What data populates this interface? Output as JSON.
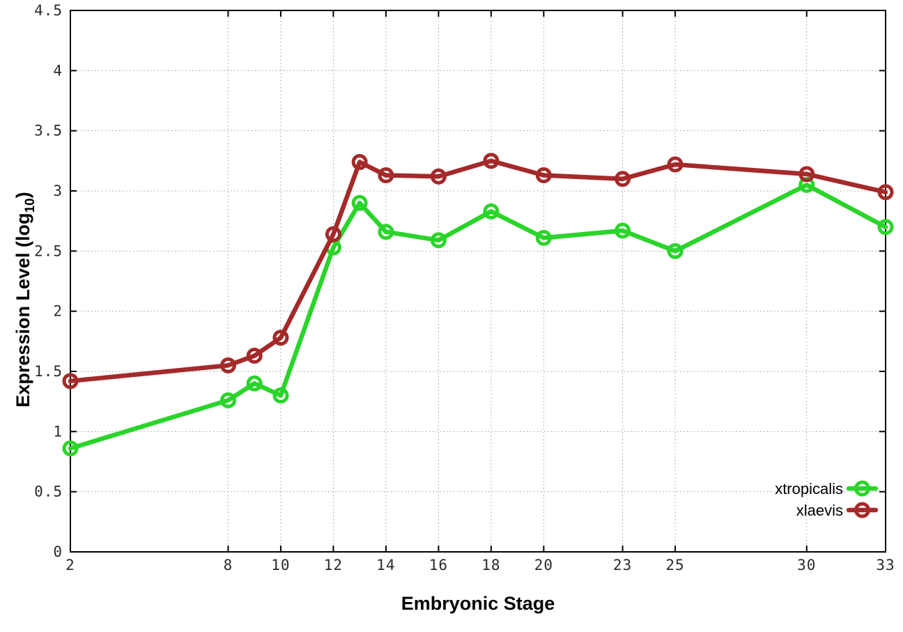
{
  "chart_data": {
    "type": "line",
    "title": "",
    "xlabel": "Embryonic Stage",
    "ylabel": "Expression Level (log10)",
    "ylabel_parts": {
      "text": "Expression Level (log",
      "subscript": "10",
      "suffix": ")"
    },
    "xlim": [
      2,
      33
    ],
    "ylim": [
      0,
      4.5
    ],
    "grid": true,
    "legend_position": "inside-bottom-right",
    "x_tick_values": [
      2,
      8,
      10,
      12,
      14,
      16,
      18,
      20,
      23,
      25,
      30,
      33
    ],
    "x_tick_labels": [
      "2",
      "8",
      "10",
      "12",
      "14",
      "16",
      "18",
      "20",
      "23",
      "25",
      "30",
      "33"
    ],
    "y_tick_values": [
      0,
      0.5,
      1,
      1.5,
      2,
      2.5,
      3,
      3.5,
      4,
      4.5
    ],
    "y_tick_labels": [
      "0",
      "0.5",
      "1",
      "1.5",
      "2",
      "2.5",
      "3",
      "3.5",
      "4",
      "4.5"
    ],
    "x": [
      2,
      8,
      9,
      10,
      12,
      13,
      14,
      16,
      18,
      20,
      23,
      25,
      30,
      33
    ],
    "series": [
      {
        "name": "xtropicalis",
        "color": "#2bd42b",
        "marker": "open-circle",
        "values": [
          0.86,
          1.26,
          1.4,
          1.3,
          2.53,
          2.9,
          2.66,
          2.59,
          2.83,
          2.61,
          2.67,
          2.5,
          3.05,
          2.7
        ]
      },
      {
        "name": "xlaevis",
        "color": "#a42a2a",
        "marker": "open-circle",
        "values": [
          1.42,
          1.55,
          1.63,
          1.78,
          2.64,
          3.24,
          3.13,
          3.12,
          3.25,
          3.13,
          3.1,
          3.22,
          3.14,
          2.99
        ]
      }
    ],
    "colors": {
      "background": "#ffffff",
      "axis": "#000000",
      "grid": "#9a9a9a",
      "tick_label": "#2a2a2a"
    }
  }
}
